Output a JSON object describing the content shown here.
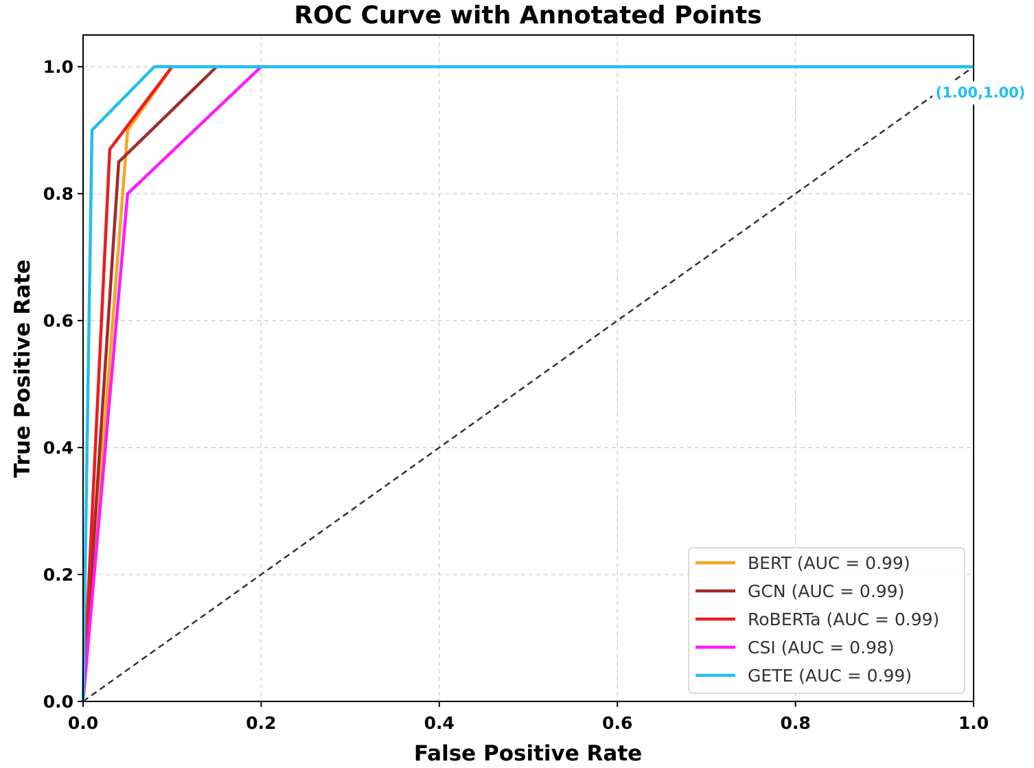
{
  "chart_data": {
    "type": "line",
    "title": "ROC Curve with Annotated Points",
    "xlabel": "False Positive Rate",
    "ylabel": "True Positive Rate",
    "xlim": [
      0.0,
      1.0
    ],
    "ylim": [
      0.0,
      1.05
    ],
    "xticks": [
      "0.0",
      "0.2",
      "0.4",
      "0.6",
      "0.8",
      "1.0"
    ],
    "yticks": [
      "0.0",
      "0.2",
      "0.4",
      "0.6",
      "0.8",
      "1.0"
    ],
    "grid": true,
    "legend_position": "lower-right",
    "series": [
      {
        "name": "BERT",
        "legend": "BERT (AUC = 0.99)",
        "color": "#f5a623",
        "x": [
          0.0,
          0.05,
          0.1,
          1.0
        ],
        "y": [
          0.0,
          0.9,
          1.0,
          1.0
        ]
      },
      {
        "name": "GCN",
        "legend": "GCN (AUC = 0.99)",
        "color": "#a52a2a",
        "x": [
          0.0,
          0.04,
          0.15,
          1.0
        ],
        "y": [
          0.0,
          0.85,
          1.0,
          1.0
        ]
      },
      {
        "name": "RoBERTa",
        "legend": "RoBERTa (AUC = 0.99)",
        "color": "#ee1c1c",
        "x": [
          0.0,
          0.03,
          0.1,
          1.0
        ],
        "y": [
          0.0,
          0.87,
          1.0,
          1.0
        ]
      },
      {
        "name": "CSI",
        "legend": "CSI (AUC = 0.98)",
        "color": "#ff1aff",
        "x": [
          0.0,
          0.05,
          0.2,
          1.0
        ],
        "y": [
          0.0,
          0.8,
          1.0,
          1.0
        ]
      },
      {
        "name": "GETE",
        "legend": "GETE (AUC = 0.99)",
        "color": "#1ec0f0",
        "x": [
          0.0,
          0.01,
          0.08,
          1.0
        ],
        "y": [
          0.0,
          0.9,
          1.0,
          1.0
        ]
      }
    ],
    "diagonal": {
      "x": [
        0,
        1
      ],
      "y": [
        0,
        1
      ],
      "color": "#333333",
      "style": "dashed"
    },
    "annotation": {
      "text": "(1.00,1.00)",
      "x": 1.0,
      "y": 1.0,
      "color": "#1ec0f0"
    }
  }
}
